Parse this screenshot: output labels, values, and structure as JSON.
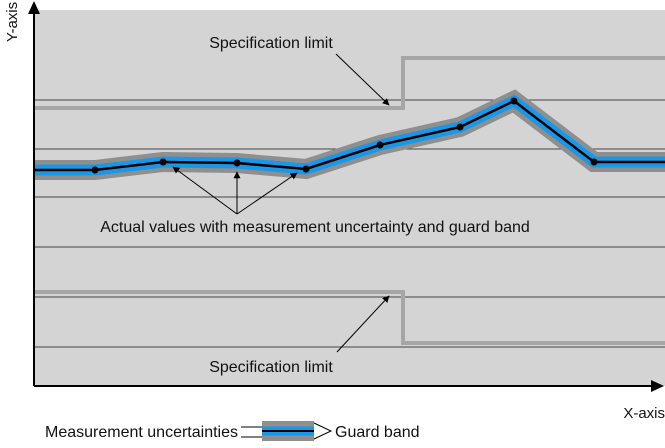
{
  "axes": {
    "x_label": "X-axis",
    "y_label": "Y-axis"
  },
  "annotations": {
    "upper_spec_label": "Specification limit",
    "lower_spec_label": "Specification limit",
    "actual_values_label": "Actual values with measurement uncertainty and guard band"
  },
  "legend": {
    "measurement_uncertainties_label": "Measurement uncertainties",
    "guard_band_label": "Guard band"
  },
  "colors": {
    "plot_background": "#d4d4d4",
    "grid_line": "#444444",
    "spec_limit": "#a6a6a6",
    "guard_band": "#8f8f8f",
    "uncertainty_band": "#1a97e6",
    "actual_line": "#000000",
    "axis": "#000000"
  }
}
